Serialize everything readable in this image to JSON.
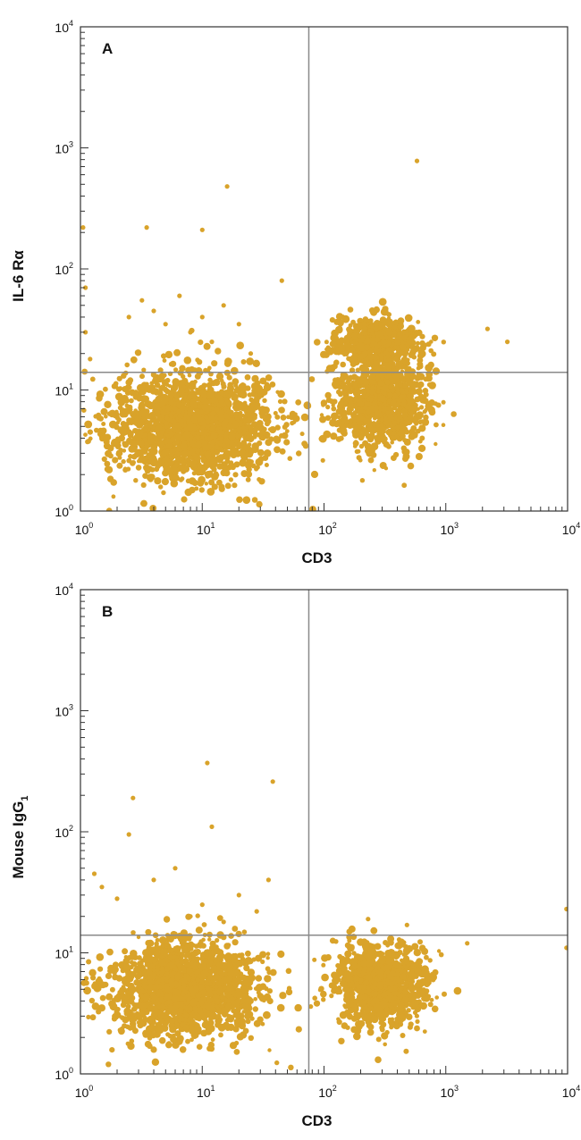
{
  "chart_data": [
    {
      "type": "scatter",
      "subtype": "flow-cytometry-density-dot-plot",
      "panel_label": "A",
      "xlabel": "CD3",
      "ylabel": "IL-6 Rα",
      "xscale": "log",
      "yscale": "log",
      "xlim": [
        1,
        10000
      ],
      "ylim": [
        1,
        10000
      ],
      "x_ticks": [
        "10^0",
        "10^1",
        "10^2",
        "10^3",
        "10^4"
      ],
      "y_ticks": [
        "10^0",
        "10^1",
        "10^2",
        "10^3",
        "10^4"
      ],
      "quadrant_gate": {
        "x": 75,
        "y": 14
      },
      "point_color": "#d9a32a",
      "gate_color": "#8a8a8a",
      "populations": [
        {
          "x_center": 8,
          "y_center": 5,
          "x_spread": 0.34,
          "y_spread": 0.22,
          "n": 1700
        },
        {
          "x_center": 300,
          "y_center": 8,
          "x_spread": 0.2,
          "y_spread": 0.2,
          "n": 900
        },
        {
          "x_center": 280,
          "y_center": 25,
          "x_spread": 0.17,
          "y_spread": 0.1,
          "n": 550
        }
      ],
      "sparse_events": [
        [
          2.5,
          40
        ],
        [
          3.2,
          55
        ],
        [
          4,
          45
        ],
        [
          5,
          35
        ],
        [
          6.5,
          60
        ],
        [
          8,
          30
        ],
        [
          10,
          40
        ],
        [
          12,
          25
        ],
        [
          15,
          50
        ],
        [
          20,
          35
        ],
        [
          25,
          20
        ],
        [
          3.5,
          220
        ],
        [
          10,
          210
        ],
        [
          16,
          480
        ],
        [
          580,
          780
        ],
        [
          45,
          80
        ],
        [
          3200,
          25
        ],
        [
          2200,
          32
        ],
        [
          1.1,
          70
        ],
        [
          1.05,
          220
        ],
        [
          1.1,
          30
        ],
        [
          1.2,
          18
        ]
      ]
    },
    {
      "type": "scatter",
      "subtype": "flow-cytometry-density-dot-plot",
      "panel_label": "B",
      "xlabel": "CD3",
      "ylabel": "Mouse IgG",
      "ylabel_subscript": "1",
      "xscale": "log",
      "yscale": "log",
      "xlim": [
        1,
        10000
      ],
      "ylim": [
        1,
        10000
      ],
      "x_ticks": [
        "10^0",
        "10^1",
        "10^2",
        "10^3",
        "10^4"
      ],
      "y_ticks": [
        "10^0",
        "10^1",
        "10^2",
        "10^3",
        "10^4"
      ],
      "quadrant_gate": {
        "x": 75,
        "y": 14
      },
      "point_color": "#d9a32a",
      "gate_color": "#8a8a8a",
      "populations": [
        {
          "x_center": 7,
          "y_center": 5,
          "x_spread": 0.3,
          "y_spread": 0.2,
          "n": 1600
        },
        {
          "x_center": 300,
          "y_center": 5.5,
          "x_spread": 0.18,
          "y_spread": 0.17,
          "n": 1000
        }
      ],
      "sparse_events": [
        [
          11,
          370
        ],
        [
          38,
          260
        ],
        [
          2.7,
          190
        ],
        [
          2.5,
          95
        ],
        [
          12,
          110
        ],
        [
          1.3,
          45
        ],
        [
          2,
          28
        ],
        [
          4,
          40
        ],
        [
          6,
          50
        ],
        [
          8,
          20
        ],
        [
          10,
          25
        ],
        [
          15,
          18
        ],
        [
          20,
          30
        ],
        [
          28,
          22
        ],
        [
          35,
          40
        ],
        [
          1.5,
          35
        ],
        [
          230,
          19
        ],
        [
          480,
          17
        ],
        [
          9800,
          23
        ],
        [
          9800,
          11
        ],
        [
          1500,
          12
        ]
      ]
    }
  ]
}
